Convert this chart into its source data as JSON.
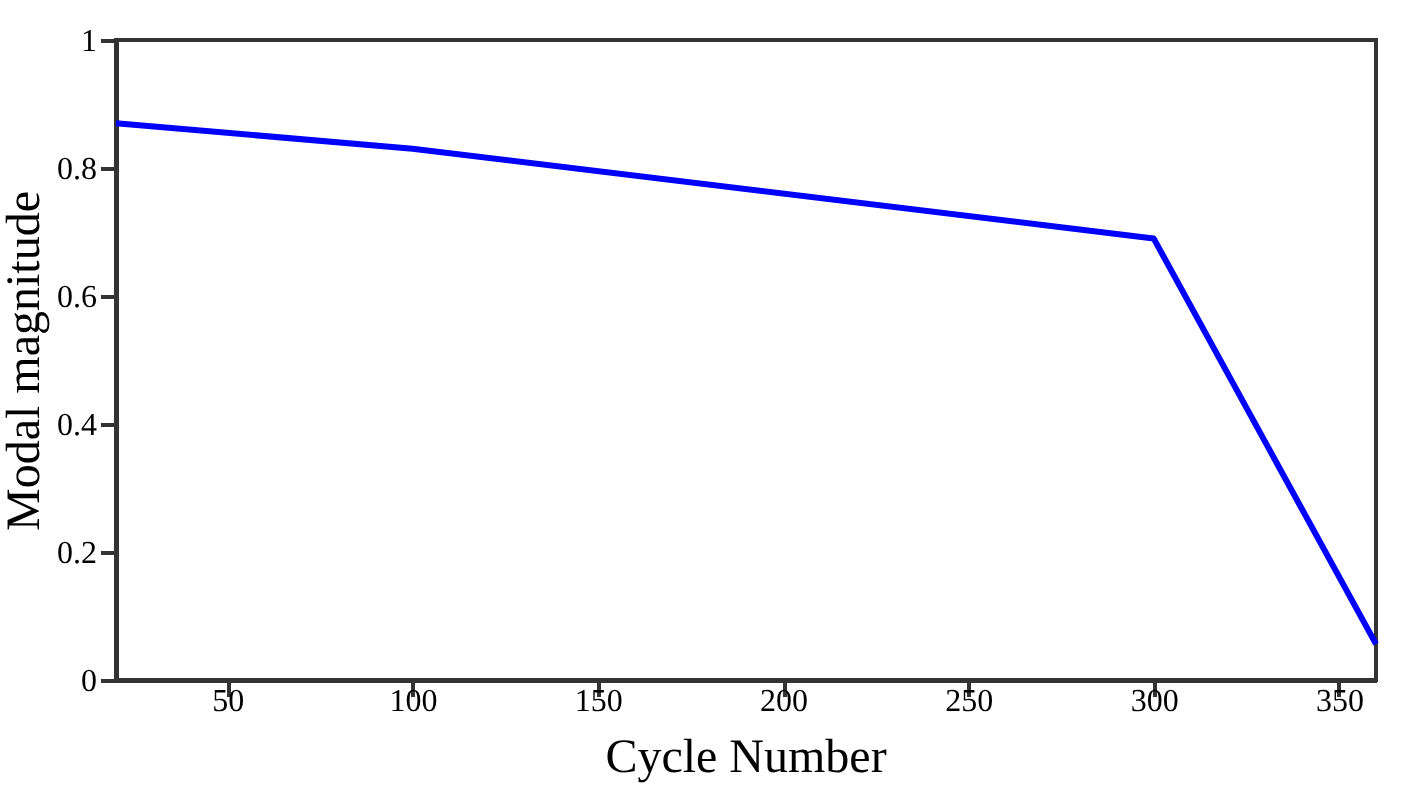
{
  "chart_data": {
    "type": "line",
    "xlabel": "Cycle Number",
    "ylabel": "Modal magnitude",
    "x": [
      20,
      100,
      300,
      360
    ],
    "series": [
      {
        "color": "#0000ff",
        "values": [
          0.87,
          0.83,
          0.69,
          0.056
        ]
      }
    ],
    "xlim": [
      20,
      360
    ],
    "xticks": [
      50,
      100,
      150,
      200,
      250,
      300,
      350
    ],
    "ylim": [
      0,
      1
    ],
    "yticks": [
      0,
      0.2,
      0.4,
      0.6,
      0.8,
      1
    ],
    "grid": false,
    "legend": false,
    "marker": "none",
    "line_style": "solid"
  }
}
